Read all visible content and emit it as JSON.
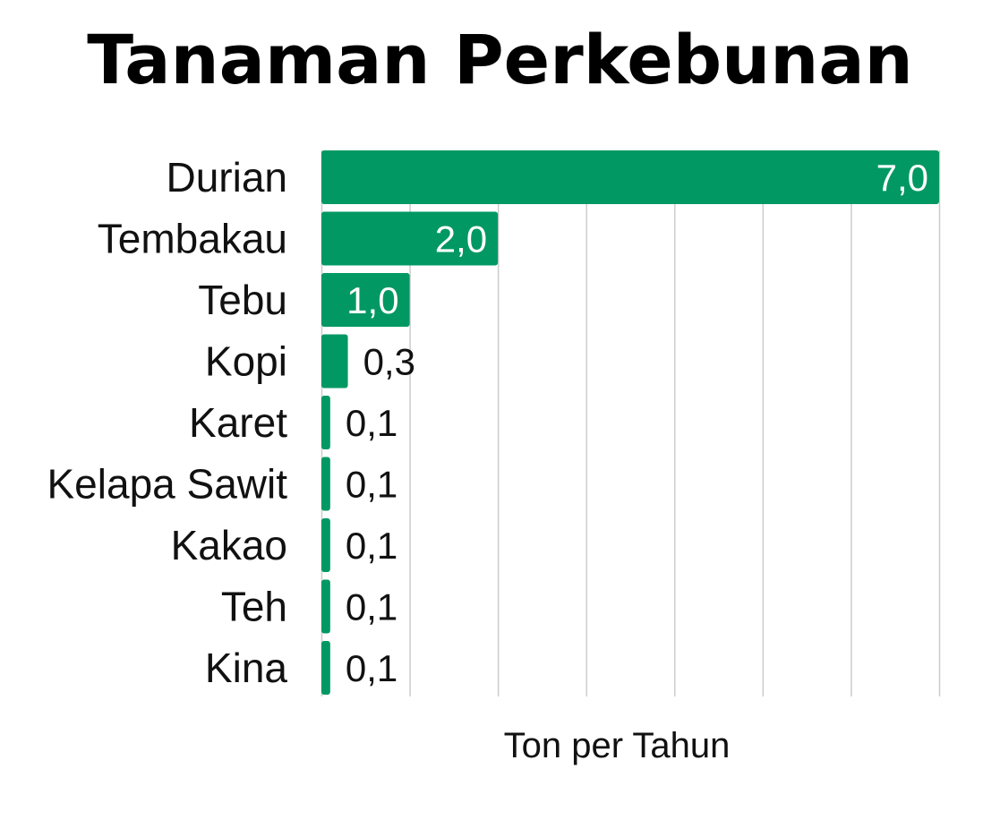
{
  "chart_data": {
    "type": "bar",
    "orientation": "horizontal",
    "title": "Tanaman Perkebunan",
    "xlabel": "Ton per Tahun",
    "ylabel": "",
    "categories": [
      "Durian",
      "Tembakau",
      "Tebu",
      "Kopi",
      "Karet",
      "Kelapa Sawit",
      "Kakao",
      "Teh",
      "Kina"
    ],
    "values": [
      7.0,
      2.0,
      1.0,
      0.3,
      0.1,
      0.1,
      0.1,
      0.1,
      0.1
    ],
    "value_labels": [
      "7,0",
      "2,0",
      "1,0",
      "0,3",
      "0,1",
      "0,1",
      "0,1",
      "0,1",
      "0,1"
    ],
    "xlim": [
      0,
      7
    ],
    "grid": true,
    "legend": "none",
    "colors": {
      "bar": "#019863",
      "grid": "#cccccc",
      "label_inside": "#ffffff",
      "label_outside": "#111111"
    }
  }
}
